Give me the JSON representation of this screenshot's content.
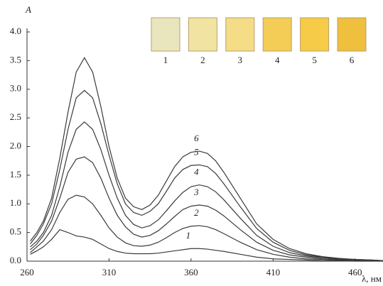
{
  "chart_data": {
    "type": "line",
    "x_label": "λ, нм",
    "y_label": "A",
    "x": [
      262,
      266,
      270,
      275,
      280,
      285,
      290,
      295,
      300,
      305,
      310,
      315,
      320,
      325,
      330,
      335,
      340,
      345,
      350,
      355,
      360,
      365,
      370,
      375,
      380,
      390,
      400,
      410,
      420,
      430,
      440,
      450,
      460,
      470,
      477
    ],
    "series": [
      {
        "name": "1",
        "color": "#3a3a3a",
        "values": [
          0.12,
          0.18,
          0.25,
          0.38,
          0.55,
          0.5,
          0.44,
          0.42,
          0.38,
          0.3,
          0.22,
          0.17,
          0.14,
          0.13,
          0.13,
          0.13,
          0.14,
          0.16,
          0.18,
          0.2,
          0.22,
          0.22,
          0.21,
          0.19,
          0.17,
          0.12,
          0.07,
          0.04,
          0.03,
          0.02,
          0.01,
          0.01,
          0.0,
          0.0,
          0.0
        ]
      },
      {
        "name": "2",
        "color": "#3a3a3a",
        "values": [
          0.15,
          0.25,
          0.35,
          0.55,
          0.85,
          1.08,
          1.15,
          1.12,
          1.0,
          0.8,
          0.58,
          0.42,
          0.32,
          0.27,
          0.26,
          0.28,
          0.33,
          0.41,
          0.5,
          0.57,
          0.61,
          0.62,
          0.6,
          0.55,
          0.48,
          0.33,
          0.2,
          0.12,
          0.07,
          0.04,
          0.03,
          0.02,
          0.01,
          0.01,
          0.0
        ]
      },
      {
        "name": "3",
        "color": "#3a3a3a",
        "values": [
          0.2,
          0.3,
          0.45,
          0.7,
          1.1,
          1.55,
          1.78,
          1.82,
          1.72,
          1.45,
          1.1,
          0.8,
          0.6,
          0.47,
          0.42,
          0.45,
          0.53,
          0.65,
          0.78,
          0.9,
          0.96,
          0.98,
          0.96,
          0.89,
          0.79,
          0.55,
          0.33,
          0.19,
          0.11,
          0.07,
          0.04,
          0.03,
          0.02,
          0.01,
          0.01
        ]
      },
      {
        "name": "4",
        "color": "#3a3a3a",
        "values": [
          0.25,
          0.35,
          0.5,
          0.8,
          1.3,
          1.9,
          2.3,
          2.43,
          2.3,
          1.95,
          1.5,
          1.1,
          0.8,
          0.64,
          0.58,
          0.62,
          0.72,
          0.88,
          1.05,
          1.2,
          1.3,
          1.33,
          1.3,
          1.21,
          1.07,
          0.75,
          0.45,
          0.26,
          0.15,
          0.09,
          0.06,
          0.04,
          0.02,
          0.01,
          0.01
        ]
      },
      {
        "name": "5",
        "color": "#3a3a3a",
        "values": [
          0.3,
          0.45,
          0.65,
          1.0,
          1.6,
          2.3,
          2.85,
          2.98,
          2.85,
          2.4,
          1.85,
          1.35,
          1.0,
          0.85,
          0.8,
          0.87,
          1.0,
          1.22,
          1.45,
          1.6,
          1.67,
          1.68,
          1.65,
          1.53,
          1.35,
          0.95,
          0.57,
          0.33,
          0.19,
          0.11,
          0.07,
          0.04,
          0.03,
          0.02,
          0.01
        ]
      },
      {
        "name": "6",
        "color": "#3a3a3a",
        "values": [
          0.35,
          0.5,
          0.7,
          1.1,
          1.8,
          2.6,
          3.3,
          3.55,
          3.3,
          2.7,
          2.0,
          1.45,
          1.1,
          0.95,
          0.9,
          0.98,
          1.15,
          1.4,
          1.65,
          1.82,
          1.9,
          1.92,
          1.88,
          1.75,
          1.55,
          1.1,
          0.65,
          0.38,
          0.22,
          0.13,
          0.08,
          0.05,
          0.03,
          0.02,
          0.01
        ]
      }
    ],
    "xlim": [
      260,
      477
    ],
    "ylim": [
      0,
      4.0
    ],
    "xticks": [
      260,
      310,
      360,
      410,
      460
    ],
    "yticks": [
      {
        "value": 0,
        "label": "0.0"
      },
      {
        "value": 0.5,
        "label": "0.5"
      },
      {
        "value": 1,
        "label": "1.0"
      },
      {
        "value": 1.5,
        "label": "1.5"
      },
      {
        "value": 2,
        "label": "2.0"
      },
      {
        "value": 2.5,
        "label": "2.5"
      },
      {
        "value": 3,
        "label": "3.0"
      },
      {
        "value": 3.5,
        "label": "3.5"
      },
      {
        "value": 4,
        "label": "4.0"
      }
    ],
    "swatches": [
      {
        "label": "1",
        "color": "#e9e6bd"
      },
      {
        "label": "2",
        "color": "#f1e3a2"
      },
      {
        "label": "3",
        "color": "#f5dc86"
      },
      {
        "label": "4",
        "color": "#f4cd56"
      },
      {
        "label": "5",
        "color": "#f6cb48"
      },
      {
        "label": "6",
        "color": "#efbf3e"
      }
    ]
  }
}
